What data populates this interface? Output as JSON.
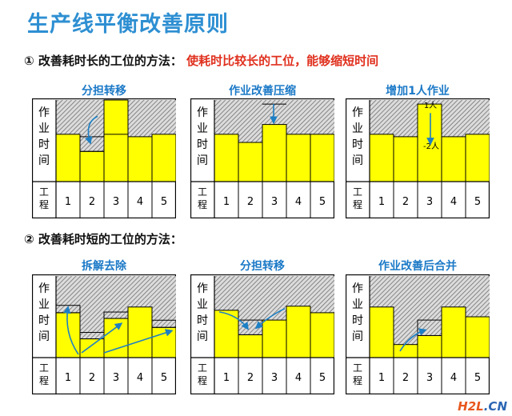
{
  "title": "生产线平衡改善原则",
  "section1": {
    "heading": "① 改善耗时长的工位的方法：",
    "highlight": "使耗时比较长的工位，能够缩短时间"
  },
  "section2": {
    "heading": "② 改善耗时短的工位的方法："
  },
  "common": {
    "y_label": [
      "作",
      "业",
      "时",
      "间"
    ],
    "x_label": [
      "工",
      "程"
    ],
    "stations": [
      "1",
      "2",
      "3",
      "4",
      "5"
    ],
    "colors": {
      "bar": "#ffff00",
      "hatch": "#707070",
      "arrow": "#1d7fc4",
      "title": "#2e8fd2",
      "sublabel": "#1b79c7",
      "highlight": "#e0301e"
    }
  },
  "panels": [
    {
      "name": "分担转移",
      "bars": [
        0.58,
        0.37,
        1.0,
        0.55,
        0.58
      ],
      "extra": "split"
    },
    {
      "name": "作业改善压缩",
      "bars": [
        0.58,
        0.48,
        0.7,
        0.58,
        0.58
      ],
      "extra": "compress"
    },
    {
      "name": "增加1人作业",
      "bars": [
        0.58,
        0.55,
        0.95,
        0.55,
        0.58
      ],
      "extra": "addperson",
      "annotations": [
        "1人",
        "-2人"
      ]
    },
    {
      "name": "拆解去除",
      "bars": [
        0.55,
        0.23,
        0.48,
        0.62,
        0.37
      ],
      "extra": "dismantle"
    },
    {
      "name": "分担转移",
      "bars": [
        0.58,
        0.28,
        0.46,
        0.63,
        0.55
      ],
      "extra": "transfer2"
    },
    {
      "name": "作业改善后合并",
      "bars": [
        0.62,
        0.16,
        0.27,
        0.62,
        0.5
      ],
      "extra": "merge"
    }
  ],
  "watermark": {
    "a": "H2L",
    "b": ".CN"
  }
}
